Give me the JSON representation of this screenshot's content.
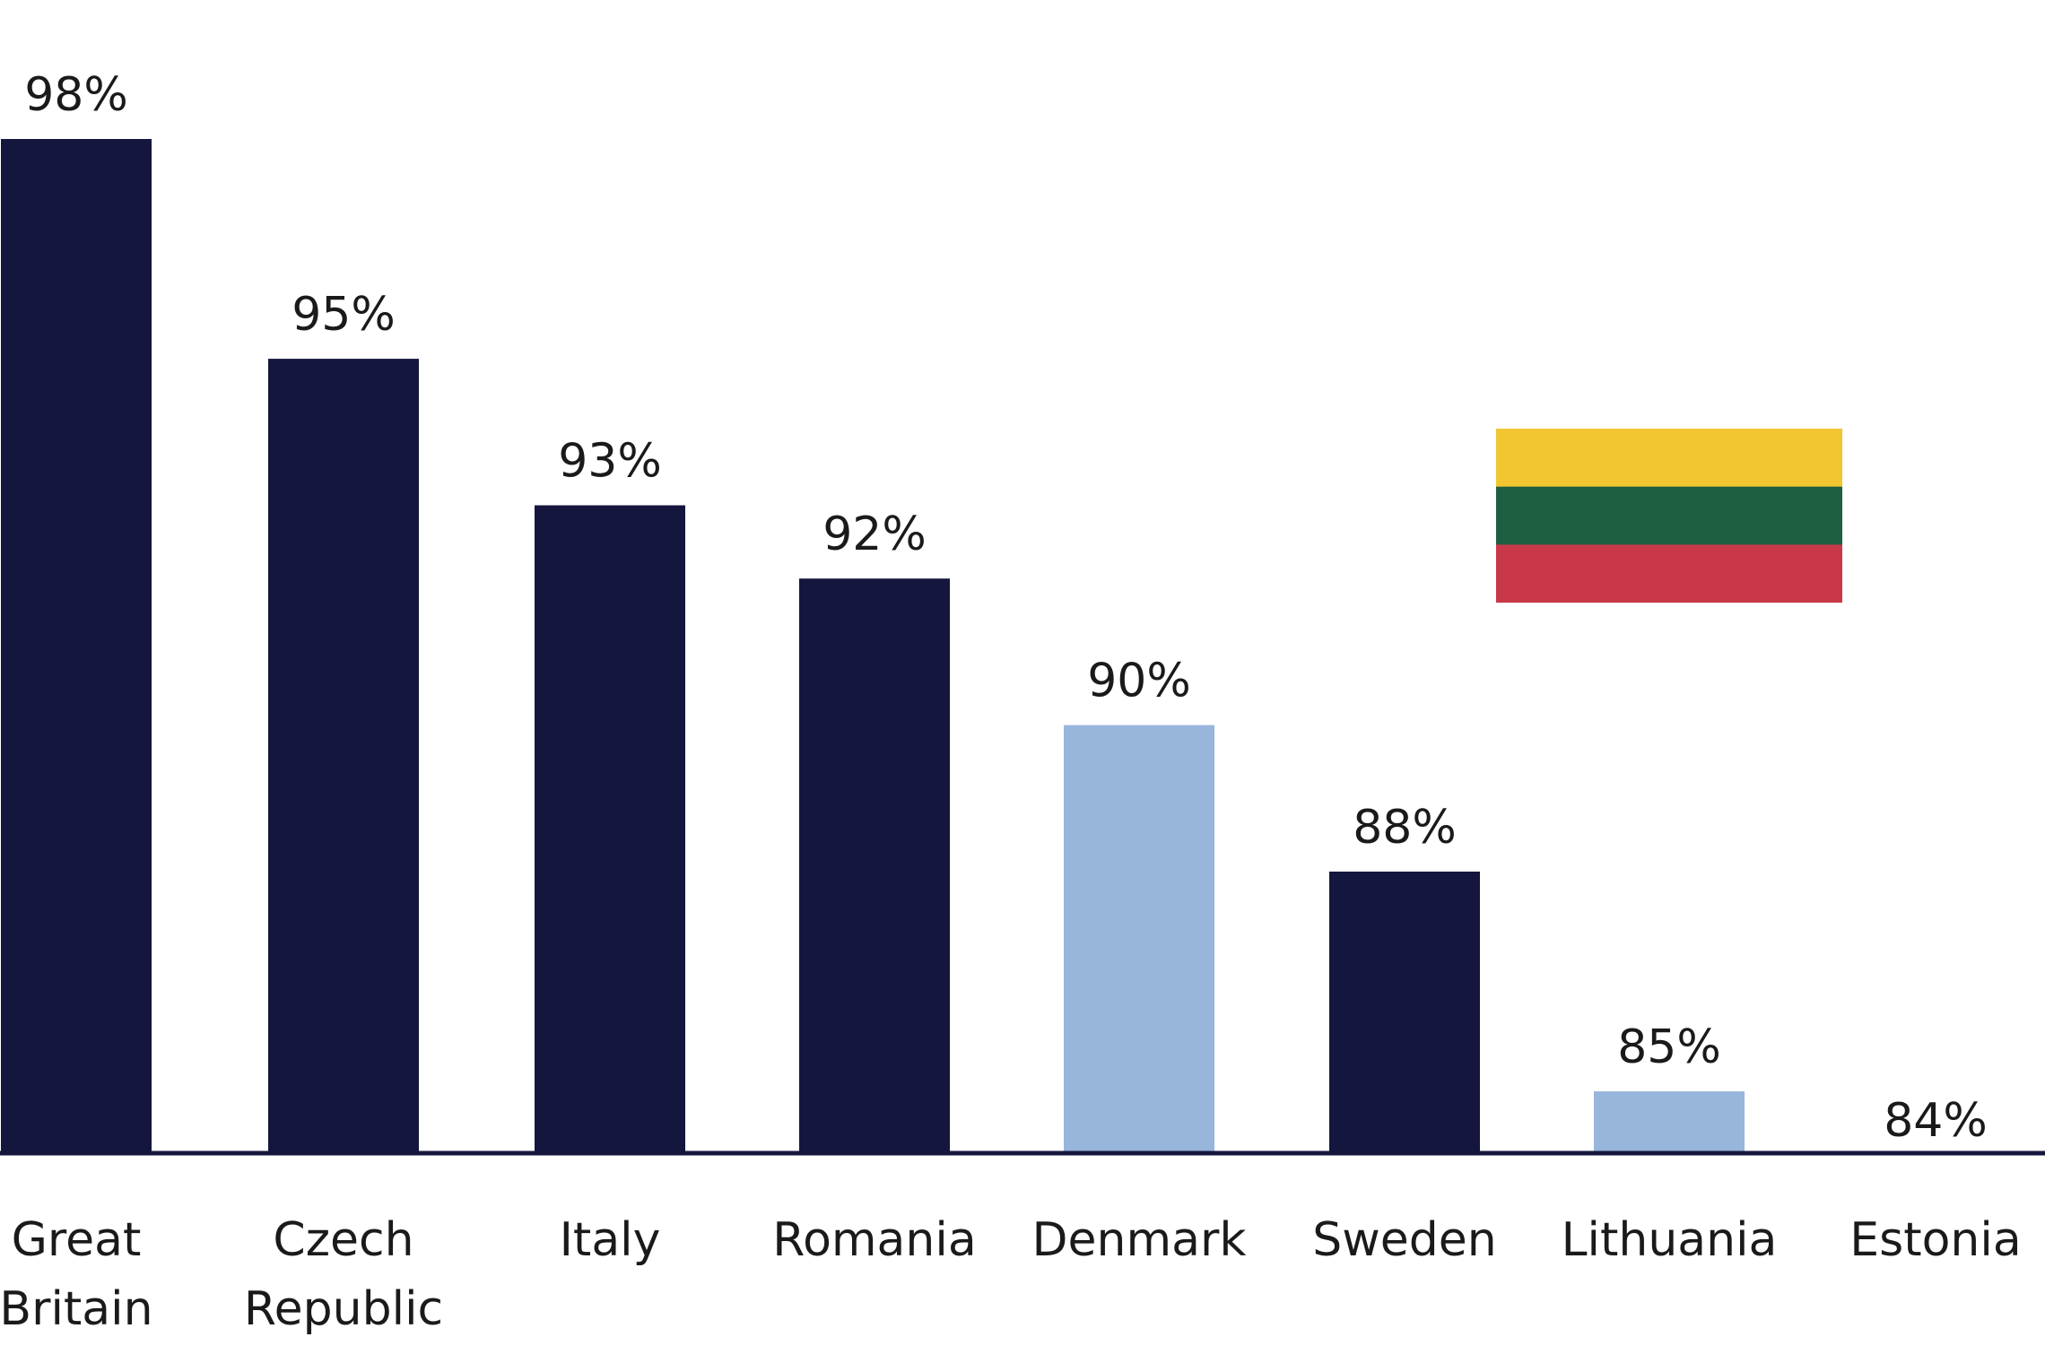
{
  "chart_data": {
    "type": "bar",
    "title": "",
    "xlabel": "",
    "ylabel": "",
    "unit": "%",
    "categories": [
      [
        "Great",
        "Britain"
      ],
      [
        "Czech",
        "Republic"
      ],
      [
        "Italy"
      ],
      [
        "Romania"
      ],
      [
        "Denmark"
      ],
      [
        "Sweden"
      ],
      [
        "Lithuania"
      ],
      [
        "Estonia"
      ]
    ],
    "values": [
      98,
      95,
      93,
      92,
      90,
      88,
      85,
      84
    ],
    "value_labels": [
      "98%",
      "95%",
      "93%",
      "92%",
      "90%",
      "88%",
      "85%",
      "84%"
    ],
    "highlighted": [
      false,
      false,
      false,
      false,
      true,
      false,
      true,
      false
    ],
    "bar_colors": {
      "default": "#15163d",
      "highlight": "#98b5dc"
    },
    "axis_color": "#15163d",
    "grid": false,
    "legend": false,
    "annotations": [
      {
        "type": "flag",
        "icon": "lithuania-flag",
        "stripe_colors": [
          "#f2c631",
          "#1e5e41",
          "#c93849"
        ]
      }
    ]
  }
}
